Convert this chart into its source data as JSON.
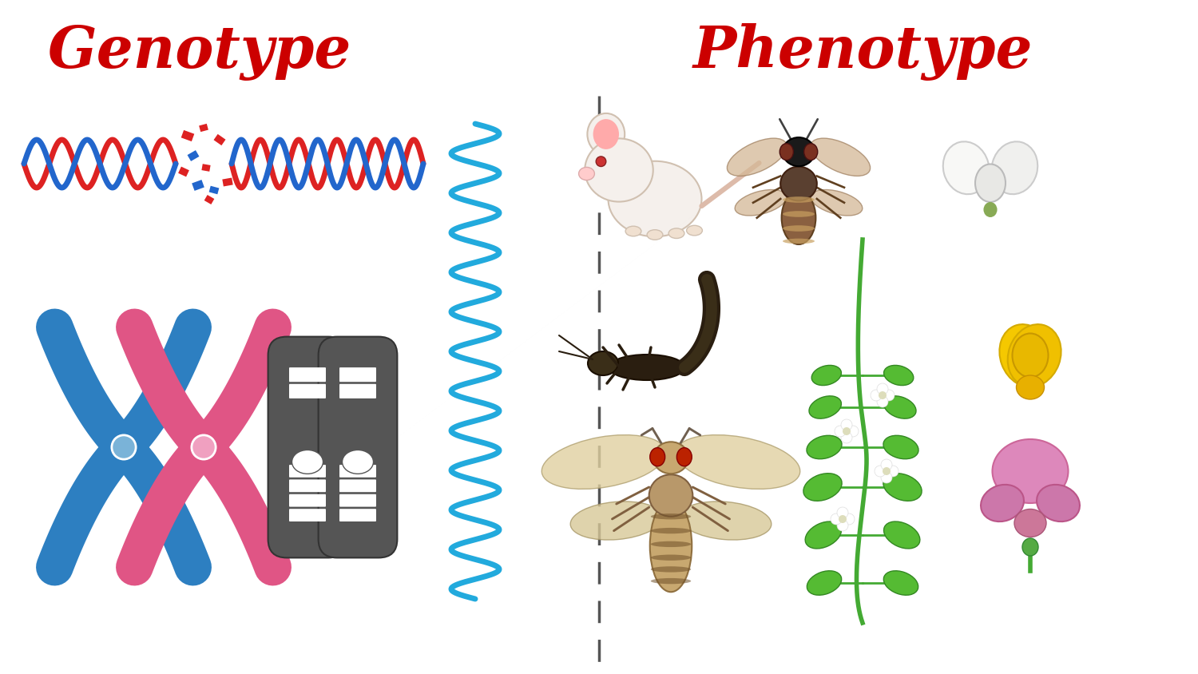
{
  "background_color": "#ffffff",
  "title_genotype": "Genotype",
  "title_phenotype": "Phenotype",
  "title_color": "#cc0000",
  "title_fontsize": 52,
  "title_fontweight": "bold",
  "divider_color": "#555555",
  "divider_linestyle": "--",
  "divider_linewidth": 2.5,
  "fig_width": 15.0,
  "fig_height": 8.44
}
